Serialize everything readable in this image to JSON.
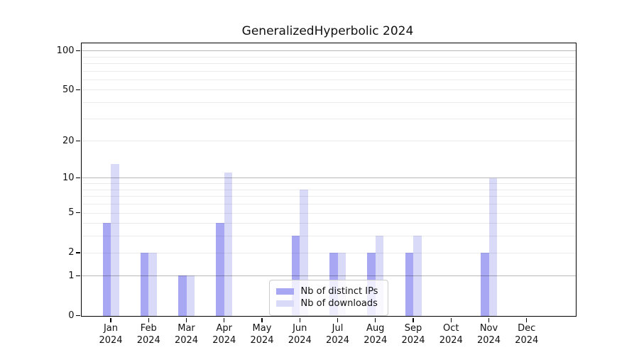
{
  "title": "GeneralizedHyperbolic 2024",
  "colors": {
    "ips_bar": "#a7a7f3",
    "downloads_bar": "#d9d9f8",
    "axis": "#000000",
    "legend_border": "#cccccc"
  },
  "chart_data": {
    "type": "bar",
    "title": "GeneralizedHyperbolic 2024",
    "yscale": "log10(1+v)",
    "ylim": [
      0,
      100
    ],
    "yticks": [
      0,
      1,
      2,
      5,
      10,
      20,
      50,
      100
    ],
    "grid_major_at": [
      1,
      10,
      100
    ],
    "grid_minor_at": [
      2,
      3,
      4,
      5,
      6,
      7,
      8,
      9,
      20,
      30,
      40,
      50,
      60,
      70,
      80,
      90
    ],
    "legend_position": "bottom-center-inside",
    "categories": [
      "Jan",
      "Feb",
      "Mar",
      "Apr",
      "May",
      "Jun",
      "Jul",
      "Aug",
      "Sep",
      "Oct",
      "Nov",
      "Dec"
    ],
    "year": "2024",
    "series": [
      {
        "name": "Nb of distinct IPs",
        "color": "#a7a7f3",
        "values": [
          4,
          2,
          1,
          4,
          0,
          3,
          2,
          2,
          2,
          0,
          2,
          0
        ]
      },
      {
        "name": "Nb of downloads",
        "color": "#d9d9f8",
        "values": [
          13,
          2,
          1,
          11,
          0,
          8,
          2,
          3,
          3,
          0,
          10,
          0
        ]
      }
    ]
  }
}
